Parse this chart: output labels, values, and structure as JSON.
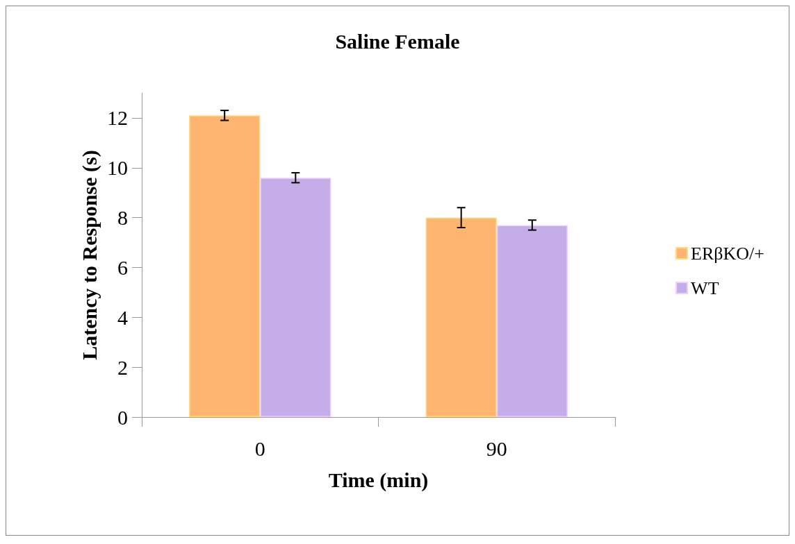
{
  "chart_data": {
    "type": "bar",
    "title": "Saline Female",
    "xlabel": "Time (min)",
    "ylabel": "Latency to Response (s)",
    "categories": [
      "0",
      "90"
    ],
    "series": [
      {
        "name": "ERβKO/+",
        "color": "#fdb56f",
        "values": [
          12.1,
          8.0
        ],
        "errors": [
          0.2,
          0.4
        ]
      },
      {
        "name": "WT",
        "color": "#c5aee8",
        "values": [
          9.6,
          7.7
        ],
        "errors": [
          0.2,
          0.2
        ]
      }
    ],
    "ylim": [
      0,
      13
    ],
    "yticks": [
      0,
      2,
      4,
      6,
      8,
      10,
      12
    ],
    "grid": false,
    "legend": "right"
  }
}
